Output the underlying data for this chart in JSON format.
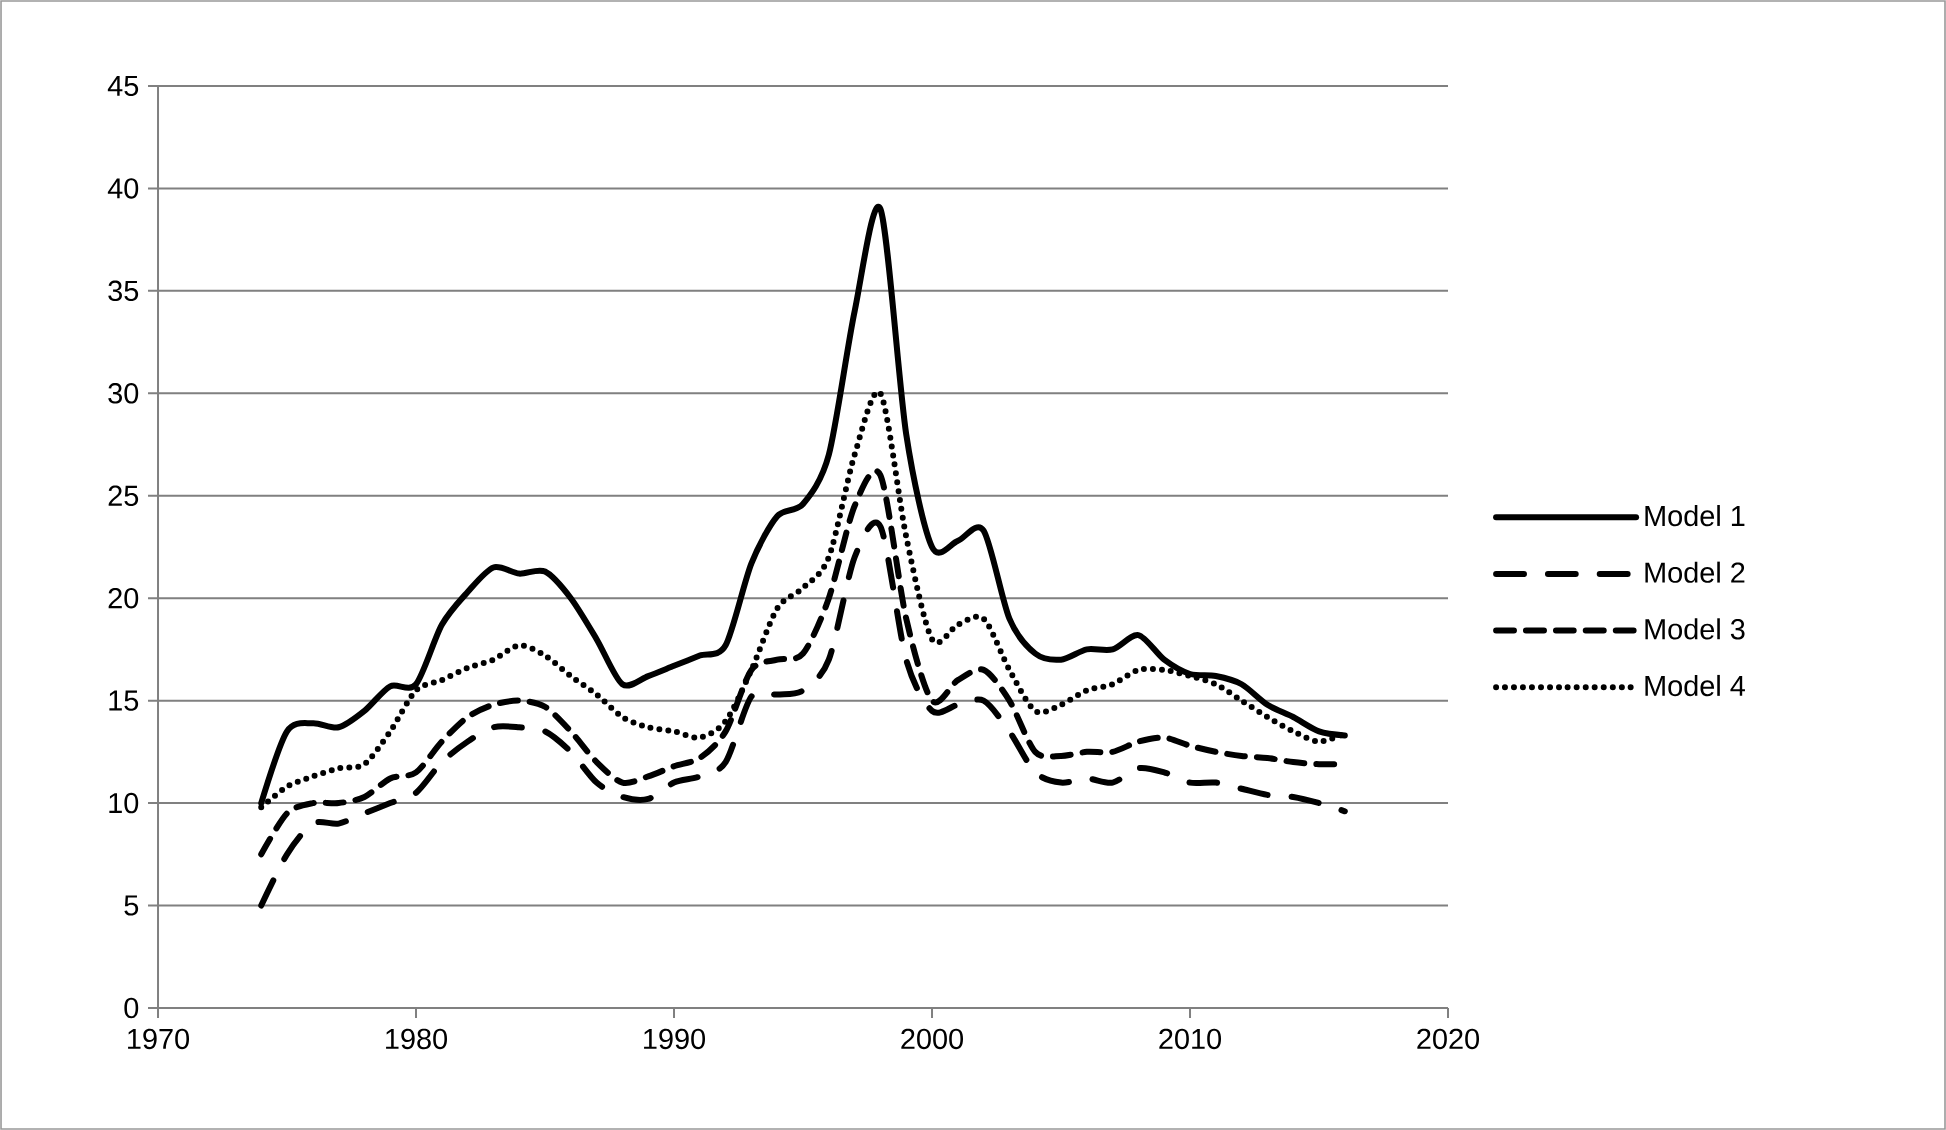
{
  "chart_data": {
    "type": "line",
    "x": [
      1974,
      1975,
      1976,
      1977,
      1978,
      1979,
      1980,
      1981,
      1982,
      1983,
      1984,
      1985,
      1986,
      1987,
      1988,
      1989,
      1990,
      1991,
      1992,
      1993,
      1994,
      1995,
      1996,
      1997,
      1998,
      1999,
      2000,
      2001,
      2002,
      2003,
      2004,
      2005,
      2006,
      2007,
      2008,
      2009,
      2010,
      2011,
      2012,
      2013,
      2014,
      2015,
      2016
    ],
    "series": [
      {
        "name": "Model 1",
        "color": "#000000",
        "line_style": "solid",
        "values": [
          10,
          13.5,
          13.9,
          13.7,
          14.5,
          15.7,
          15.8,
          18.7,
          20.3,
          21.5,
          21.2,
          21.3,
          20,
          18,
          15.8,
          16.2,
          16.7,
          17.2,
          17.7,
          21.7,
          24,
          24.6,
          27,
          34,
          39,
          28,
          22.5,
          22.8,
          23.3,
          19,
          17.3,
          17,
          17.5,
          17.5,
          18.2,
          17,
          16.3,
          16.2,
          15.8,
          14.8,
          14.2,
          13.5,
          13.3
        ]
      },
      {
        "name": "Model 2",
        "color": "#000000",
        "line_style": "dashdot",
        "values": [
          5,
          7.5,
          9,
          9,
          9.5,
          10,
          10.5,
          12,
          13,
          13.7,
          13.7,
          13.5,
          12.5,
          11,
          10.3,
          10.2,
          11,
          11.3,
          12,
          15.2,
          15.3,
          15.5,
          17,
          22,
          23.5,
          17,
          14.5,
          14.8,
          15,
          13.5,
          11.5,
          11,
          11.2,
          11,
          11.7,
          11.5,
          11,
          11,
          10.7,
          10.4,
          10.3,
          10,
          9.6
        ]
      },
      {
        "name": "Model 3",
        "color": "#000000",
        "line_style": "dashed",
        "values": [
          7.5,
          9.5,
          10,
          10,
          10.3,
          11.2,
          11.5,
          13,
          14.2,
          14.8,
          15,
          14.7,
          13.5,
          12,
          11,
          11.3,
          11.8,
          12.2,
          13.5,
          16.5,
          17,
          17.3,
          20,
          24.5,
          26,
          19,
          15,
          16,
          16.5,
          15,
          12.5,
          12.3,
          12.5,
          12.5,
          13,
          13.2,
          12.8,
          12.5,
          12.3,
          12.2,
          12,
          11.9,
          11.9
        ]
      },
      {
        "name": "Model 4",
        "color": "#000000",
        "line_style": "dotted",
        "values": [
          9.8,
          10.8,
          11.3,
          11.7,
          11.9,
          13.5,
          15.5,
          16,
          16.6,
          17,
          17.7,
          17.2,
          16.2,
          15.3,
          14.2,
          13.7,
          13.5,
          13.2,
          14,
          16.5,
          19.5,
          20.5,
          22,
          27,
          30,
          23,
          18,
          18.7,
          19,
          16.5,
          14.5,
          14.8,
          15.5,
          15.8,
          16.5,
          16.5,
          16.2,
          15.8,
          15,
          14.2,
          13.5,
          13,
          13.4
        ]
      }
    ],
    "xlim": [
      1970,
      2020
    ],
    "xticks": [
      1970,
      1980,
      1990,
      2000,
      2010,
      2020
    ],
    "ylim": [
      0,
      45
    ],
    "yticks": [
      0,
      5,
      10,
      15,
      20,
      25,
      30,
      35,
      40,
      45
    ],
    "grid": "y",
    "legend": "right",
    "marker": "none"
  }
}
